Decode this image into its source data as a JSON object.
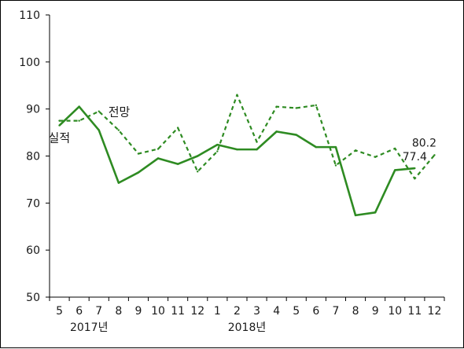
{
  "chart_data": {
    "type": "line",
    "ylim": [
      50,
      110
    ],
    "yticks": [
      50,
      60,
      70,
      80,
      90,
      100,
      110
    ],
    "categories": [
      "5",
      "6",
      "7",
      "8",
      "9",
      "10",
      "11",
      "12",
      "1",
      "2",
      "3",
      "4",
      "5",
      "6",
      "7",
      "8",
      "9",
      "10",
      "11",
      "12"
    ],
    "year_labels": [
      {
        "label": "2017년",
        "index": 1.5
      },
      {
        "label": "2018년",
        "index": 9.5
      }
    ],
    "series": [
      {
        "name": "실적",
        "style": "solid",
        "color": "#2e8b22",
        "values": [
          86.5,
          90.5,
          85.5,
          74.3,
          76.5,
          79.5,
          78.3,
          80.0,
          82.4,
          81.4,
          81.4,
          85.2,
          84.5,
          81.9,
          81.9,
          67.4,
          68.0,
          77.0,
          77.4,
          null
        ]
      },
      {
        "name": "전망",
        "style": "dashed",
        "color": "#2e8b22",
        "values": [
          87.5,
          87.5,
          89.5,
          85.5,
          80.5,
          81.5,
          86.0,
          76.7,
          81.0,
          93.0,
          83.0,
          90.5,
          90.2,
          90.8,
          78.0,
          81.2,
          79.8,
          81.6,
          75.2,
          80.2
        ]
      }
    ],
    "series_labels": [
      {
        "text": "실적",
        "series": 0,
        "index": 0
      },
      {
        "text": "전망",
        "series": 1,
        "index": 2
      }
    ],
    "data_labels": [
      {
        "text": "77.4",
        "series": 0,
        "index": 18
      },
      {
        "text": "80.2",
        "series": 1,
        "index": 19
      }
    ]
  }
}
